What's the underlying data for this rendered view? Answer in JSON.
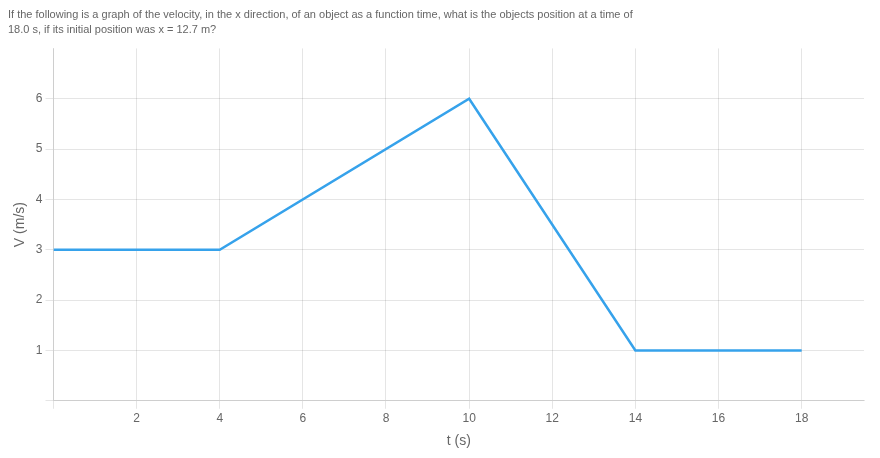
{
  "chart_data": {
    "type": "line",
    "title": "If the following is a graph of the velocity, in the x direction, of an object as a function time, what is the objects position at a time of",
    "subtitle": "18.0 s, if its initial position was x = 12.7 m?",
    "x_label": "t (s)",
    "y_label": "V (m/s)",
    "x": [
      0,
      4,
      4,
      10,
      14,
      14,
      18
    ],
    "values": [
      3,
      3,
      3,
      6,
      1,
      1,
      1
    ],
    "xlim": [
      0,
      19.5
    ],
    "ylim": [
      0,
      7
    ],
    "xticks": [
      {
        "value": 0,
        "label": ""
      },
      2,
      4,
      6,
      8,
      10,
      12,
      14,
      16,
      18
    ],
    "yticks": [
      {
        "value": 0,
        "label": ""
      },
      1,
      2,
      3,
      4,
      5,
      6
    ],
    "grid": true
  }
}
